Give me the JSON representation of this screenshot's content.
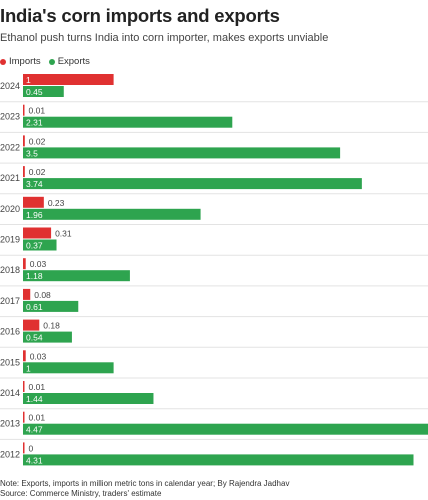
{
  "title": "India's corn imports and exports",
  "subtitle": "Ethanol push turns India into corn importer, makes exports unviable",
  "legend": {
    "imports_label": "Imports",
    "exports_label": "Exports"
  },
  "colors": {
    "imports": "#e03131",
    "exports": "#2ea44f",
    "grid": "#e3e3e3",
    "axis_text": "#444444"
  },
  "footer": {
    "note": "Note: Exports, imports in million metric tons in calendar year; By Rajendra Jadhav",
    "source": "Source: Commerce Ministry, traders' estimate"
  },
  "chart_data": {
    "type": "bar",
    "orientation": "horizontal",
    "categories": [
      "2024",
      "2023",
      "2022",
      "2021",
      "2020",
      "2019",
      "2018",
      "2017",
      "2016",
      "2015",
      "2014",
      "2013",
      "2012"
    ],
    "series": [
      {
        "name": "Imports",
        "values": [
          1,
          0.01,
          0.02,
          0.02,
          0.23,
          0.31,
          0.03,
          0.08,
          0.18,
          0.03,
          0.01,
          0.01,
          0
        ],
        "labels": [
          "1",
          "0.01",
          "0.02",
          "0.02",
          "0.23",
          "0.31",
          "0.03",
          "0.08",
          "0.18",
          "0.03",
          "0.01",
          "0.01",
          "0"
        ]
      },
      {
        "name": "Exports",
        "values": [
          0.45,
          2.31,
          3.5,
          3.74,
          1.96,
          0.37,
          1.18,
          0.61,
          0.54,
          1,
          1.44,
          4.47,
          4.31
        ],
        "labels": [
          "0.45",
          "2.31",
          "3.5",
          "3.74",
          "1.96",
          "0.37",
          "1.18",
          "0.61",
          "0.54",
          "1",
          "1.44",
          "4.47",
          "4.31"
        ]
      }
    ],
    "xlim": [
      0,
      4.47
    ],
    "grid": true,
    "legend_position": "top-left"
  }
}
